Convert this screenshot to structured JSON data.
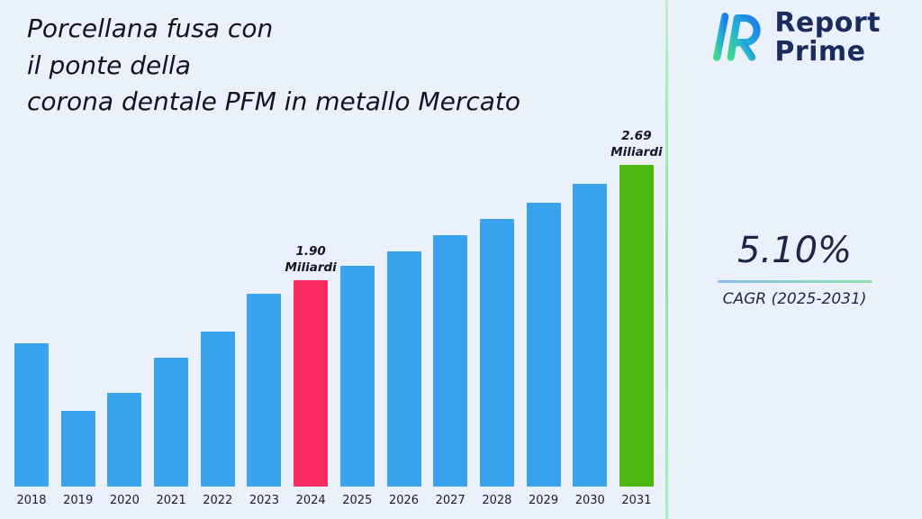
{
  "header": {
    "title_lines": [
      "Porcellana fusa con",
      "il ponte della",
      "corona dentale PFM in metallo Mercato"
    ]
  },
  "logo": {
    "line1": "Report",
    "line2": "Prime"
  },
  "stat": {
    "value": "5.10%",
    "label": "CAGR (2025-2031)"
  },
  "chart_data": {
    "type": "bar",
    "title": "Porcellana fusa con il ponte della corona dentale PFM in metallo Mercato",
    "categories": [
      "2018",
      "2019",
      "2020",
      "2021",
      "2022",
      "2023",
      "2024",
      "2025",
      "2026",
      "2027",
      "2028",
      "2029",
      "2030",
      "2031"
    ],
    "values": [
      1.47,
      1.01,
      1.13,
      1.37,
      1.55,
      1.81,
      1.9,
      2.0,
      2.1,
      2.21,
      2.32,
      2.43,
      2.56,
      2.69
    ],
    "unit": "Miliardi",
    "ylim": [
      0.49,
      2.82
    ],
    "grid": false,
    "legend": false,
    "colors": {
      "default": "#3AA3EE",
      "background": "#EBF1FB"
    },
    "highlights": {
      "2024": {
        "color": "#FA2A62",
        "label_lines": [
          "1.90",
          "Miliardi"
        ]
      },
      "2031": {
        "color": "#4DB70F",
        "label_lines": [
          "2.69",
          "Miliardi"
        ]
      }
    }
  }
}
